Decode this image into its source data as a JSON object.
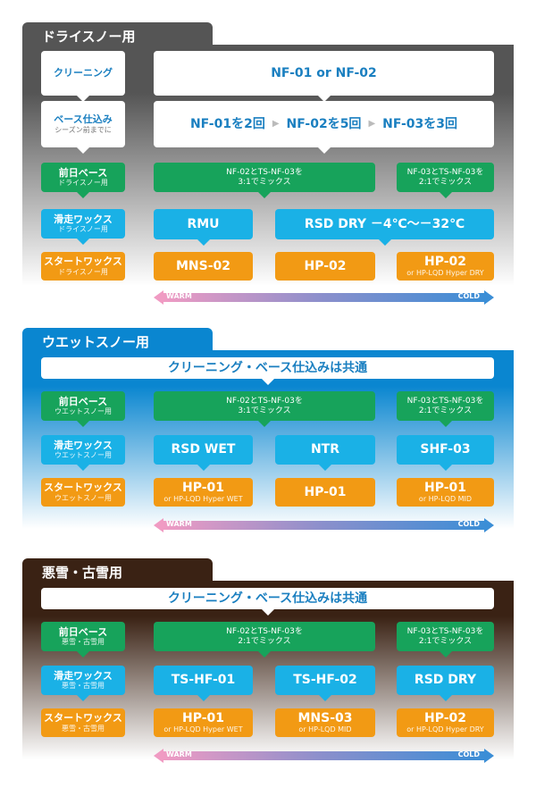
{
  "colors": {
    "dry": "#555555",
    "wet": "#0a86d0",
    "bad": "#3a2214",
    "green": "#17a35b",
    "blue": "#1ab1e6",
    "orange": "#f29a14",
    "text_blue": "#1a7fc0"
  },
  "arrow": {
    "warm": "WARM",
    "cold": "COLD"
  },
  "sections": [
    {
      "title": "ドライスノー用",
      "left": {
        "cleaning": {
          "main": "クリーニング"
        },
        "base": {
          "main": "ベース仕込み",
          "sub": "シーズン前までに"
        },
        "prev": {
          "main": "前日ベース",
          "sub": "ドライスノー用"
        },
        "glide": {
          "main": "滑走ワックス",
          "sub": "ドライスノー用"
        },
        "start": {
          "main": "スタートワックス",
          "sub": "ドライスノー用"
        }
      },
      "cleaning": "NF-01 or NF-02",
      "base_steps": [
        "NF-01を2回",
        "NF-02を5回",
        "NF-03を3回"
      ],
      "green": [
        {
          "line1": "NF-02とTS-NF-03を",
          "line2": "3:1でミックス"
        },
        {
          "line1": "NF-03とTS-NF-03を",
          "line2": "2:1でミックス"
        }
      ],
      "blue": [
        {
          "main": "RMU"
        },
        {
          "main": "RSD DRY －4℃～－32℃"
        }
      ],
      "orange": [
        {
          "main": "MNS-02"
        },
        {
          "main": "HP-02"
        },
        {
          "main": "HP-02",
          "sub": "or HP-LQD Hyper DRY"
        }
      ]
    },
    {
      "title": "ウエットスノー用",
      "common": "クリーニング・ベース仕込みは共通",
      "left": {
        "prev": {
          "main": "前日ベース",
          "sub": "ウエットスノー用"
        },
        "glide": {
          "main": "滑走ワックス",
          "sub": "ウエットスノー用"
        },
        "start": {
          "main": "スタートワックス",
          "sub": "ウエットスノー用"
        }
      },
      "green": [
        {
          "line1": "NF-02とTS-NF-03を",
          "line2": "3:1でミックス"
        },
        {
          "line1": "NF-03とTS-NF-03を",
          "line2": "2:1でミックス"
        }
      ],
      "blue": [
        {
          "main": "RSD WET"
        },
        {
          "main": "NTR"
        },
        {
          "main": "SHF-03"
        }
      ],
      "orange": [
        {
          "main": "HP-01",
          "sub": "or HP-LQD Hyper WET"
        },
        {
          "main": "HP-01"
        },
        {
          "main": "HP-01",
          "sub": "or HP-LQD MID"
        }
      ]
    },
    {
      "title": "悪雪・古雪用",
      "common": "クリーニング・ベース仕込みは共通",
      "left": {
        "prev": {
          "main": "前日ベース",
          "sub": "悪雪・古雪用"
        },
        "glide": {
          "main": "滑走ワックス",
          "sub": "悪雪・古雪用"
        },
        "start": {
          "main": "スタートワックス",
          "sub": "悪雪・古雪用"
        }
      },
      "green": [
        {
          "line1": "NF-02とTS-NF-03を",
          "line2": "2:1でミックス"
        },
        {
          "line1": "NF-03とTS-NF-03を",
          "line2": "2:1でミックス"
        }
      ],
      "blue": [
        {
          "main": "TS-HF-01"
        },
        {
          "main": "TS-HF-02"
        },
        {
          "main": "RSD DRY"
        }
      ],
      "orange": [
        {
          "main": "HP-01",
          "sub": "or HP-LQD Hyper WET"
        },
        {
          "main": "MNS-03",
          "sub": "or HP-LQD MID"
        },
        {
          "main": "HP-02",
          "sub": "or HP-LQD Hyper DRY"
        }
      ]
    }
  ]
}
